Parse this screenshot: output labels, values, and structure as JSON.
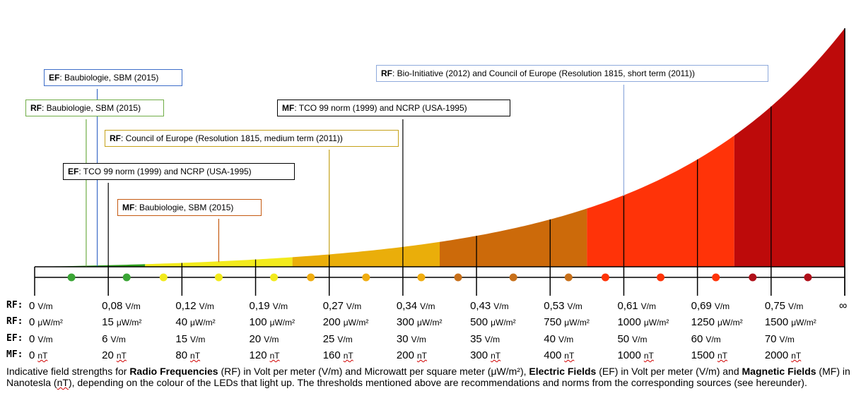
{
  "chart_data": {
    "type": "area",
    "title": "",
    "description": "Exponential colour scale of indicative field strengths with LED colour bands and recommendation thresholds",
    "scale_positions": [
      0,
      1,
      2,
      3,
      4,
      5,
      6,
      7,
      8,
      9,
      10,
      11
    ],
    "bands": [
      {
        "from": 0,
        "to": 1.5,
        "color": "#2e9e1c"
      },
      {
        "from": 1.5,
        "to": 3.5,
        "color": "#f2ea1c"
      },
      {
        "from": 3.5,
        "to": 5.5,
        "color": "#eaae0a"
      },
      {
        "from": 5.5,
        "to": 7.5,
        "color": "#cc6a0a"
      },
      {
        "from": 7.5,
        "to": 9.5,
        "color": "#ff3308"
      },
      {
        "from": 9.5,
        "to": 11.0,
        "color": "#bd0a0a"
      }
    ],
    "leds": [
      {
        "pos": 0.5,
        "color": "#3aa535"
      },
      {
        "pos": 1.25,
        "color": "#3aa535"
      },
      {
        "pos": 1.75,
        "color": "#f2ea1c"
      },
      {
        "pos": 2.5,
        "color": "#f2ea1c"
      },
      {
        "pos": 3.25,
        "color": "#f2ea1c"
      },
      {
        "pos": 3.75,
        "color": "#f0ad10"
      },
      {
        "pos": 4.5,
        "color": "#f0ad10"
      },
      {
        "pos": 5.25,
        "color": "#f0ad10"
      },
      {
        "pos": 5.75,
        "color": "#c8701a"
      },
      {
        "pos": 6.5,
        "color": "#c8701a"
      },
      {
        "pos": 7.25,
        "color": "#c8701a"
      },
      {
        "pos": 7.75,
        "color": "#ff3308"
      },
      {
        "pos": 8.5,
        "color": "#ff3308"
      },
      {
        "pos": 9.25,
        "color": "#ff3308"
      },
      {
        "pos": 9.75,
        "color": "#b0101a"
      },
      {
        "pos": 10.5,
        "color": "#b0101a"
      }
    ],
    "thresholds": [
      {
        "id": "ef-baubiologie",
        "prefix": "EF",
        "text": ": Baubiologie, SBM (2015)",
        "pos": 0.85,
        "border": "#3d6dc9"
      },
      {
        "id": "rf-baubiologie",
        "prefix": "RF",
        "text": ": Baubiologie, SBM (2015)",
        "pos": 0.7,
        "border": "#70ad47"
      },
      {
        "id": "mf-tco",
        "prefix": "MF",
        "text": ": TCO 99 norm (1999) and NCRP (USA-1995)",
        "pos": 5.0,
        "border": "#000000"
      },
      {
        "id": "rf-council-medium",
        "prefix": "RF",
        "text": ": Council of Europe (Resolution 1815, medium term (2011))",
        "pos": 4.0,
        "border": "#c5a21a"
      },
      {
        "id": "ef-tco",
        "prefix": "EF",
        "text": ": TCO 99 norm (1999) and NCRP (USA-1995)",
        "pos": 1.0,
        "border": "#000000"
      },
      {
        "id": "mf-baubiologie",
        "prefix": "MF",
        "text": ": Baubiologie, SBM (2015)",
        "pos": 2.5,
        "border": "#c55a11"
      },
      {
        "id": "rf-bioinitiative",
        "prefix": "RF",
        "text": ": Bio-Initiative (2012) and Council of Europe (Resolution 1815, short term (2011))",
        "pos": 8.0,
        "border": "#8faadc"
      }
    ],
    "rows": [
      {
        "label": "RF:",
        "unit": "V/m",
        "values": [
          "0",
          "0,08",
          "0,12",
          "0,19",
          "0,27",
          "0,34",
          "0,43",
          "0,53",
          "0,61",
          "0,69",
          "0,75"
        ],
        "unit_error": false
      },
      {
        "label": "RF:",
        "unit": "μW/m²",
        "values": [
          "0",
          "15",
          "40",
          "100",
          "200",
          "300",
          "500",
          "750",
          "1000",
          "1250",
          "1500"
        ],
        "unit_error": false
      },
      {
        "label": "EF:",
        "unit": "V/m",
        "values": [
          "0",
          "6",
          "15",
          "20",
          "25",
          "30",
          "35",
          "40",
          "50",
          "60",
          "70"
        ],
        "unit_error": false
      },
      {
        "label": "MF:",
        "unit": "nT",
        "values": [
          "0",
          "20",
          "80",
          "120",
          "160",
          "200",
          "300",
          "400",
          "1000",
          "1500",
          "2000"
        ],
        "unit_error": true
      }
    ],
    "infinity": "∞"
  },
  "caption": {
    "t1": "Indicative field strengths for ",
    "b1": "Radio Frequencies",
    "t2": " (RF) in Volt per meter (V/m) and Microwatt per square meter (μW/m²), ",
    "b2": "Electric Fields",
    "t3": " (EF) in Volt per meter (V/m) and ",
    "b3": "Magnetic Fields",
    "t4": " (MF) in Nanotesla (",
    "nt": "nT",
    "t5": "), depending on the colour of the LEDs that light up. The thresholds mentioned above are recommendations and norms from the corresponding sources (see hereunder)."
  }
}
